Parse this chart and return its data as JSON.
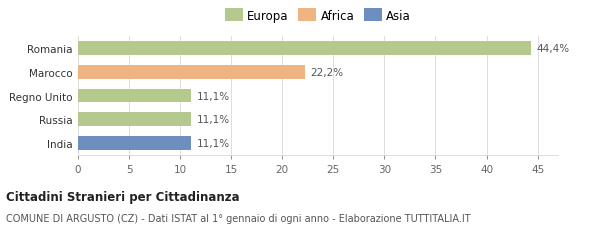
{
  "categories": [
    "Romania",
    "Marocco",
    "Regno Unito",
    "Russia",
    "India"
  ],
  "values": [
    44.4,
    22.2,
    11.1,
    11.1,
    11.1
  ],
  "labels": [
    "44,4%",
    "22,2%",
    "11,1%",
    "11,1%",
    "11,1%"
  ],
  "bar_colors": [
    "#b5c98e",
    "#f0b482",
    "#b5c98e",
    "#b5c98e",
    "#6d8fbf"
  ],
  "legend_items": [
    {
      "label": "Europa",
      "color": "#b5c98e"
    },
    {
      "label": "Africa",
      "color": "#f0b482"
    },
    {
      "label": "Asia",
      "color": "#6d8fbf"
    }
  ],
  "xlim": [
    0,
    47
  ],
  "xticks": [
    0,
    5,
    10,
    15,
    20,
    25,
    30,
    35,
    40,
    45
  ],
  "title_bold": "Cittadini Stranieri per Cittadinanza",
  "subtitle": "COMUNE DI ARGUSTO (CZ) - Dati ISTAT al 1° gennaio di ogni anno - Elaborazione TUTTITALIA.IT",
  "bg_chart": "#ffffff",
  "bg_fig": "#ffffff",
  "grid_color": "#dddddd",
  "bar_height": 0.58
}
